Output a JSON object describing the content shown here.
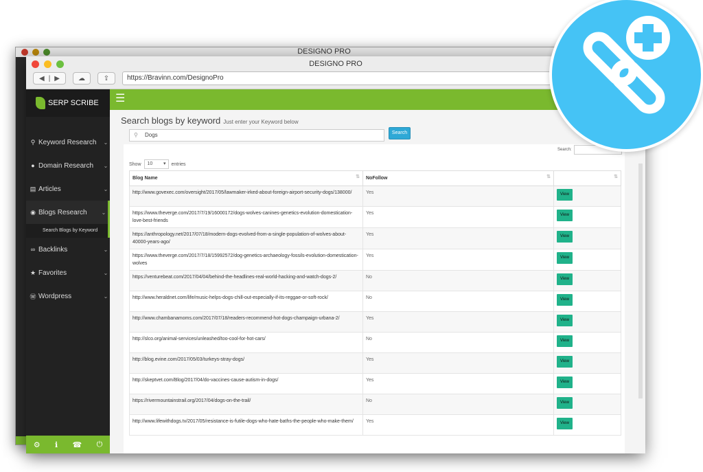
{
  "browser": {
    "title": "DESIGNO PRO",
    "url": "https://Bravinn.com/DesignoPro"
  },
  "app": {
    "brand": "SERP SCRIBE",
    "accent": "#7ab92e",
    "badge_color": "#45c3f5"
  },
  "sidebar": {
    "items": [
      {
        "label": "Keyword Research",
        "icon": "search-icon"
      },
      {
        "label": "Domain Research",
        "icon": "globe-icon"
      },
      {
        "label": "Articles",
        "icon": "document-icon"
      },
      {
        "label": "Blogs Research",
        "icon": "eye-icon",
        "active": true
      },
      {
        "label": "Backlinks",
        "icon": "link-icon"
      },
      {
        "label": "Favorites",
        "icon": "star-icon"
      },
      {
        "label": "Wordpress",
        "icon": "wordpress-icon"
      }
    ],
    "subitem": "Search Blogs by Keyword",
    "footer_icons": [
      "gear-icon",
      "info-icon",
      "phone-icon",
      "power-icon"
    ]
  },
  "page": {
    "title": "Search blogs by keyword",
    "subtitle": "Just enter your Keyword below",
    "search_value": "Dogs",
    "search_button": "Search"
  },
  "table": {
    "show_label": "Show",
    "entries_label": "entries",
    "page_size": "10",
    "filter_label": "Search:",
    "headers": [
      "Blog Name",
      "NoFollow",
      ""
    ],
    "view_label": "View",
    "rows": [
      [
        "http://www.govexec.com/oversight/2017/05/lawmaker-irked-about-foreign-airport-security-dogs/138000/",
        "Yes"
      ],
      [
        "https://www.theverge.com/2017/7/19/16000172/dogs-wolves-canines-genetics-evolution-domestication-love-best-friends",
        "Yes"
      ],
      [
        "https://anthropology.net/2017/07/18/modern-dogs-evolved-from-a-single-population-of-wolves-about-40000-years-ago/",
        "Yes"
      ],
      [
        "https://www.theverge.com/2017/7/18/15992572/dog-genetics-archaeology-fossils-evolution-domestication-wolves",
        "Yes"
      ],
      [
        "https://venturebeat.com/2017/04/04/behind-the-headlines-real-world-hacking-and-watch-dogs-2/",
        "No"
      ],
      [
        "http://www.heraldnet.com/life/music-helps-dogs-chill-out-especially-if-its-reggae-or-soft-rock/",
        "No"
      ],
      [
        "http://www.chambanamoms.com/2017/07/18/readers-recommend-hot-dogs-champaign-urbana-2/",
        "Yes"
      ],
      [
        "http://slco.org/animal-services/unleashed/too-cool-for-hot-cars/",
        "No"
      ],
      [
        "http://blog.evine.com/2017/05/03/turkeys-stray-dogs/",
        "Yes"
      ],
      [
        "http://skeptvet.com/Blog/2017/04/do-vaccines-cause-autism-in-dogs/",
        "Yes"
      ],
      [
        "https://rivermountainstrail.org/2017/04/dogs-on-the-trail/",
        "No"
      ],
      [
        "http://www.lifewithdogs.tv/2017/05/resistance-is-futile-dogs-who-hate-baths-the-people-who-make-them/",
        "Yes"
      ]
    ]
  }
}
